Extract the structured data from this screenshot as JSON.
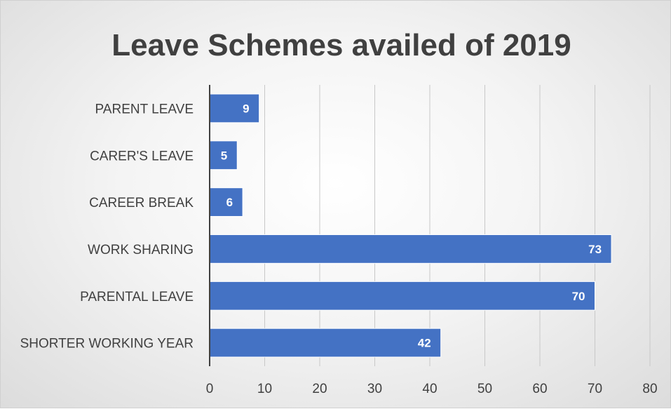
{
  "chart_data": {
    "type": "bar",
    "orientation": "horizontal",
    "title": "Leave Schemes availed of 2019",
    "categories": [
      "PARENT LEAVE",
      "CARER'S LEAVE",
      "CAREER BREAK",
      "WORK SHARING",
      "PARENTAL LEAVE",
      "SHORTER WORKING YEAR"
    ],
    "values": [
      9,
      5,
      6,
      73,
      70,
      42
    ],
    "xlim": [
      0,
      80
    ],
    "xticks": [
      "0",
      "10",
      "20",
      "30",
      "40",
      "50",
      "60",
      "70",
      "80"
    ],
    "xlabel": "",
    "ylabel": "",
    "grid": "vertical",
    "legend": "none",
    "data_labels": true,
    "bar_color": "#4472C4"
  }
}
